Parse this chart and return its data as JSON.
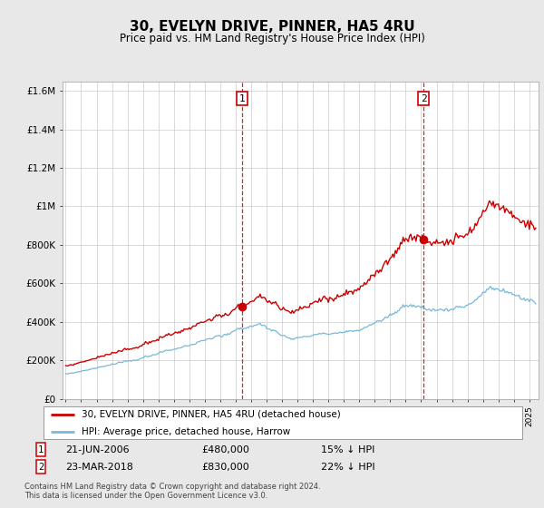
{
  "title": "30, EVELYN DRIVE, PINNER, HA5 4RU",
  "subtitle": "Price paid vs. HM Land Registry's House Price Index (HPI)",
  "ylabel_ticks": [
    "£0",
    "£200K",
    "£400K",
    "£600K",
    "£800K",
    "£1M",
    "£1.2M",
    "£1.4M",
    "£1.6M"
  ],
  "ytick_values": [
    0,
    200000,
    400000,
    600000,
    800000,
    1000000,
    1200000,
    1400000,
    1600000
  ],
  "ylim": [
    0,
    1650000
  ],
  "hpi_color": "#7ab8d9",
  "hpi_fill": "#daeaf4",
  "price_color": "#cc0000",
  "vline_color": "#cc0000",
  "bg_color": "#e8e8e8",
  "plot_bg": "#ffffff",
  "grid_color": "#cccccc",
  "transaction1": {
    "date": "21-JUN-2006",
    "price": 480000,
    "label": "1",
    "pct": "15%",
    "direction": "↓"
  },
  "transaction2": {
    "date": "23-MAR-2018",
    "price": 830000,
    "label": "2",
    "pct": "22%",
    "direction": "↓"
  },
  "legend_line1": "30, EVELYN DRIVE, PINNER, HA5 4RU (detached house)",
  "legend_line2": "HPI: Average price, detached house, Harrow",
  "footnote": "Contains HM Land Registry data © Crown copyright and database right 2024.\nThis data is licensed under the Open Government Licence v3.0.",
  "start_year": 1995,
  "end_year": 2025
}
